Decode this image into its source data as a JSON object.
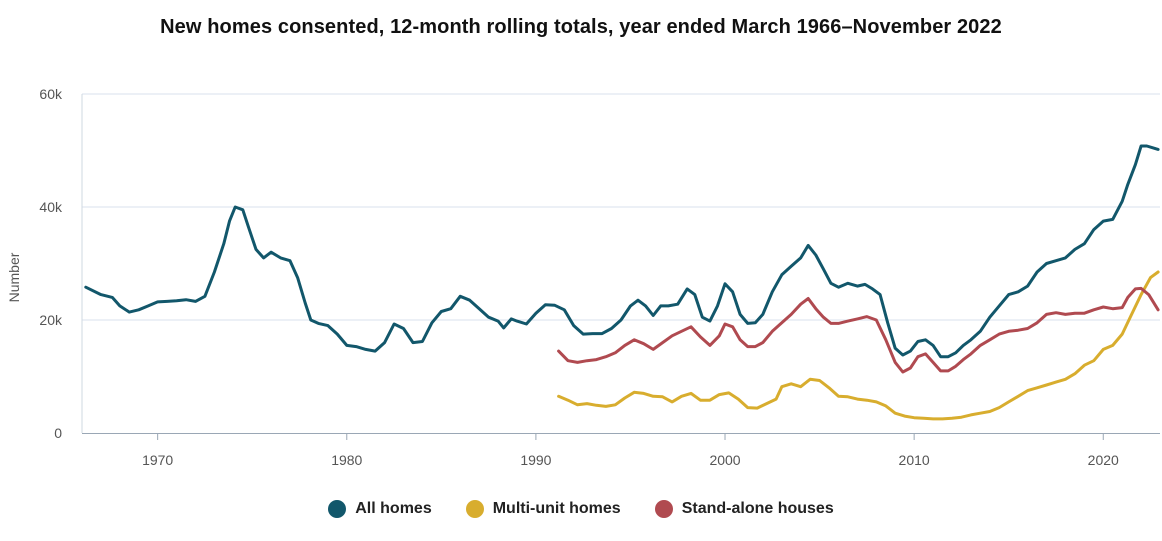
{
  "chart_data": {
    "type": "line",
    "title": "New homes consented, 12-month rolling totals, year ended March 1966–November 2022",
    "ylabel": "Number",
    "xlabel": "",
    "xlim": [
      1966,
      2023
    ],
    "ylim": [
      0,
      60000
    ],
    "x_ticks": [
      1970,
      1980,
      1990,
      2000,
      2010,
      2020
    ],
    "x_tick_labels": [
      "1970",
      "1980",
      "1990",
      "2000",
      "2010",
      "2020"
    ],
    "y_ticks": [
      0,
      20000,
      40000,
      60000
    ],
    "y_tick_labels": [
      "0",
      "20k",
      "40k",
      "60k"
    ],
    "grid": true,
    "legend_position": "bottom-center",
    "series": [
      {
        "name": "All homes",
        "color": "#12576b",
        "points": [
          [
            1966.2,
            25800
          ],
          [
            1967.0,
            24500
          ],
          [
            1967.6,
            24000
          ],
          [
            1968.0,
            22500
          ],
          [
            1968.5,
            21400
          ],
          [
            1969.0,
            21800
          ],
          [
            1969.5,
            22500
          ],
          [
            1970.0,
            23200
          ],
          [
            1970.5,
            23300
          ],
          [
            1971.0,
            23400
          ],
          [
            1971.5,
            23600
          ],
          [
            1972.0,
            23300
          ],
          [
            1972.5,
            24200
          ],
          [
            1973.0,
            28500
          ],
          [
            1973.5,
            33500
          ],
          [
            1973.8,
            37500
          ],
          [
            1974.1,
            40000
          ],
          [
            1974.5,
            39500
          ],
          [
            1974.8,
            36500
          ],
          [
            1975.2,
            32500
          ],
          [
            1975.6,
            31000
          ],
          [
            1976.0,
            32000
          ],
          [
            1976.5,
            31000
          ],
          [
            1977.0,
            30500
          ],
          [
            1977.4,
            27500
          ],
          [
            1977.8,
            23000
          ],
          [
            1978.1,
            20000
          ],
          [
            1978.5,
            19400
          ],
          [
            1979.0,
            19000
          ],
          [
            1979.5,
            17500
          ],
          [
            1980.0,
            15500
          ],
          [
            1980.5,
            15300
          ],
          [
            1981.0,
            14800
          ],
          [
            1981.5,
            14500
          ],
          [
            1982.0,
            16000
          ],
          [
            1982.5,
            19300
          ],
          [
            1983.0,
            18500
          ],
          [
            1983.5,
            16000
          ],
          [
            1984.0,
            16200
          ],
          [
            1984.5,
            19500
          ],
          [
            1985.0,
            21500
          ],
          [
            1985.5,
            22000
          ],
          [
            1986.0,
            24200
          ],
          [
            1986.5,
            23500
          ],
          [
            1987.0,
            22000
          ],
          [
            1987.5,
            20500
          ],
          [
            1988.0,
            19800
          ],
          [
            1988.3,
            18600
          ],
          [
            1988.7,
            20200
          ],
          [
            1989.0,
            19800
          ],
          [
            1989.5,
            19300
          ],
          [
            1990.0,
            21200
          ],
          [
            1990.5,
            22700
          ],
          [
            1991.0,
            22600
          ],
          [
            1991.5,
            21800
          ],
          [
            1992.0,
            19000
          ],
          [
            1992.5,
            17500
          ],
          [
            1993.0,
            17600
          ],
          [
            1993.5,
            17600
          ],
          [
            1994.0,
            18500
          ],
          [
            1994.5,
            20000
          ],
          [
            1995.0,
            22500
          ],
          [
            1995.4,
            23500
          ],
          [
            1995.8,
            22500
          ],
          [
            1996.2,
            20800
          ],
          [
            1996.6,
            22500
          ],
          [
            1997.0,
            22500
          ],
          [
            1997.5,
            22800
          ],
          [
            1998.0,
            25500
          ],
          [
            1998.4,
            24500
          ],
          [
            1998.8,
            20500
          ],
          [
            1999.2,
            19800
          ],
          [
            1999.6,
            22500
          ],
          [
            2000.0,
            26400
          ],
          [
            2000.4,
            25000
          ],
          [
            2000.8,
            21000
          ],
          [
            2001.2,
            19400
          ],
          [
            2001.6,
            19500
          ],
          [
            2002.0,
            21000
          ],
          [
            2002.5,
            25000
          ],
          [
            2003.0,
            28000
          ],
          [
            2003.5,
            29500
          ],
          [
            2004.0,
            31000
          ],
          [
            2004.4,
            33200
          ],
          [
            2004.8,
            31500
          ],
          [
            2005.2,
            29000
          ],
          [
            2005.6,
            26500
          ],
          [
            2006.0,
            25800
          ],
          [
            2006.5,
            26500
          ],
          [
            2007.0,
            26000
          ],
          [
            2007.4,
            26300
          ],
          [
            2007.8,
            25500
          ],
          [
            2008.2,
            24500
          ],
          [
            2008.6,
            19500
          ],
          [
            2009.0,
            15000
          ],
          [
            2009.4,
            13800
          ],
          [
            2009.8,
            14500
          ],
          [
            2010.2,
            16200
          ],
          [
            2010.6,
            16500
          ],
          [
            2011.0,
            15500
          ],
          [
            2011.4,
            13500
          ],
          [
            2011.8,
            13500
          ],
          [
            2012.2,
            14200
          ],
          [
            2012.6,
            15500
          ],
          [
            2013.0,
            16500
          ],
          [
            2013.5,
            18000
          ],
          [
            2014.0,
            20500
          ],
          [
            2014.5,
            22500
          ],
          [
            2015.0,
            24500
          ],
          [
            2015.5,
            25000
          ],
          [
            2016.0,
            26000
          ],
          [
            2016.5,
            28500
          ],
          [
            2017.0,
            30000
          ],
          [
            2017.5,
            30500
          ],
          [
            2018.0,
            31000
          ],
          [
            2018.5,
            32500
          ],
          [
            2019.0,
            33500
          ],
          [
            2019.5,
            36000
          ],
          [
            2020.0,
            37500
          ],
          [
            2020.5,
            37800
          ],
          [
            2021.0,
            41000
          ],
          [
            2021.3,
            44000
          ],
          [
            2021.7,
            47500
          ],
          [
            2022.0,
            50800
          ],
          [
            2022.3,
            50800
          ],
          [
            2022.6,
            50500
          ],
          [
            2022.9,
            50200
          ]
        ]
      },
      {
        "name": "Multi-unit homes",
        "color": "#d8ad2e",
        "points": [
          [
            1991.2,
            6500
          ],
          [
            1991.7,
            5800
          ],
          [
            1992.2,
            5000
          ],
          [
            1992.7,
            5200
          ],
          [
            1993.2,
            4900
          ],
          [
            1993.7,
            4700
          ],
          [
            1994.2,
            5000
          ],
          [
            1994.7,
            6200
          ],
          [
            1995.2,
            7200
          ],
          [
            1995.7,
            7000
          ],
          [
            1996.2,
            6500
          ],
          [
            1996.7,
            6400
          ],
          [
            1997.2,
            5500
          ],
          [
            1997.7,
            6500
          ],
          [
            1998.2,
            7000
          ],
          [
            1998.7,
            5800
          ],
          [
            1999.2,
            5800
          ],
          [
            1999.7,
            6800
          ],
          [
            2000.2,
            7100
          ],
          [
            2000.7,
            6000
          ],
          [
            2001.2,
            4500
          ],
          [
            2001.7,
            4400
          ],
          [
            2002.2,
            5200
          ],
          [
            2002.7,
            6000
          ],
          [
            2003.0,
            8200
          ],
          [
            2003.5,
            8700
          ],
          [
            2004.0,
            8200
          ],
          [
            2004.5,
            9500
          ],
          [
            2005.0,
            9300
          ],
          [
            2005.5,
            8000
          ],
          [
            2006.0,
            6500
          ],
          [
            2006.5,
            6400
          ],
          [
            2007.0,
            6000
          ],
          [
            2007.5,
            5800
          ],
          [
            2008.0,
            5500
          ],
          [
            2008.5,
            4800
          ],
          [
            2009.0,
            3500
          ],
          [
            2009.5,
            3000
          ],
          [
            2010.0,
            2700
          ],
          [
            2010.5,
            2600
          ],
          [
            2011.0,
            2500
          ],
          [
            2011.5,
            2500
          ],
          [
            2012.0,
            2600
          ],
          [
            2012.5,
            2800
          ],
          [
            2013.0,
            3200
          ],
          [
            2013.5,
            3500
          ],
          [
            2014.0,
            3800
          ],
          [
            2014.5,
            4500
          ],
          [
            2015.0,
            5500
          ],
          [
            2015.5,
            6500
          ],
          [
            2016.0,
            7500
          ],
          [
            2016.5,
            8000
          ],
          [
            2017.0,
            8500
          ],
          [
            2017.5,
            9000
          ],
          [
            2018.0,
            9500
          ],
          [
            2018.5,
            10500
          ],
          [
            2019.0,
            12000
          ],
          [
            2019.5,
            12800
          ],
          [
            2020.0,
            14800
          ],
          [
            2020.5,
            15500
          ],
          [
            2021.0,
            17500
          ],
          [
            2021.5,
            21000
          ],
          [
            2022.0,
            24500
          ],
          [
            2022.5,
            27500
          ],
          [
            2022.9,
            28500
          ]
        ]
      },
      {
        "name": "Stand-alone houses",
        "color": "#b04a50",
        "points": [
          [
            1991.2,
            14500
          ],
          [
            1991.7,
            12800
          ],
          [
            1992.2,
            12500
          ],
          [
            1992.7,
            12800
          ],
          [
            1993.2,
            13000
          ],
          [
            1993.7,
            13500
          ],
          [
            1994.2,
            14200
          ],
          [
            1994.7,
            15500
          ],
          [
            1995.2,
            16500
          ],
          [
            1995.7,
            15800
          ],
          [
            1996.2,
            14800
          ],
          [
            1996.7,
            16000
          ],
          [
            1997.2,
            17200
          ],
          [
            1997.7,
            18000
          ],
          [
            1998.2,
            18800
          ],
          [
            1998.7,
            17000
          ],
          [
            1999.2,
            15500
          ],
          [
            1999.7,
            17200
          ],
          [
            2000.0,
            19300
          ],
          [
            2000.4,
            18800
          ],
          [
            2000.8,
            16500
          ],
          [
            2001.2,
            15300
          ],
          [
            2001.6,
            15300
          ],
          [
            2002.0,
            16000
          ],
          [
            2002.5,
            18000
          ],
          [
            2003.0,
            19500
          ],
          [
            2003.5,
            21000
          ],
          [
            2004.0,
            22800
          ],
          [
            2004.4,
            23800
          ],
          [
            2004.8,
            22000
          ],
          [
            2005.2,
            20500
          ],
          [
            2005.6,
            19400
          ],
          [
            2006.0,
            19400
          ],
          [
            2006.5,
            19800
          ],
          [
            2007.0,
            20200
          ],
          [
            2007.5,
            20600
          ],
          [
            2008.0,
            20000
          ],
          [
            2008.5,
            16500
          ],
          [
            2009.0,
            12500
          ],
          [
            2009.4,
            10800
          ],
          [
            2009.8,
            11500
          ],
          [
            2010.2,
            13500
          ],
          [
            2010.6,
            14000
          ],
          [
            2011.0,
            12500
          ],
          [
            2011.4,
            11000
          ],
          [
            2011.8,
            11000
          ],
          [
            2012.2,
            11800
          ],
          [
            2012.6,
            13000
          ],
          [
            2013.0,
            14000
          ],
          [
            2013.5,
            15500
          ],
          [
            2014.0,
            16500
          ],
          [
            2014.5,
            17500
          ],
          [
            2015.0,
            18000
          ],
          [
            2015.5,
            18200
          ],
          [
            2016.0,
            18500
          ],
          [
            2016.5,
            19500
          ],
          [
            2017.0,
            21000
          ],
          [
            2017.5,
            21300
          ],
          [
            2018.0,
            21000
          ],
          [
            2018.5,
            21200
          ],
          [
            2019.0,
            21200
          ],
          [
            2019.5,
            21800
          ],
          [
            2020.0,
            22300
          ],
          [
            2020.5,
            22000
          ],
          [
            2021.0,
            22200
          ],
          [
            2021.3,
            24000
          ],
          [
            2021.7,
            25500
          ],
          [
            2022.0,
            25600
          ],
          [
            2022.4,
            24500
          ],
          [
            2022.9,
            21800
          ]
        ]
      }
    ]
  }
}
